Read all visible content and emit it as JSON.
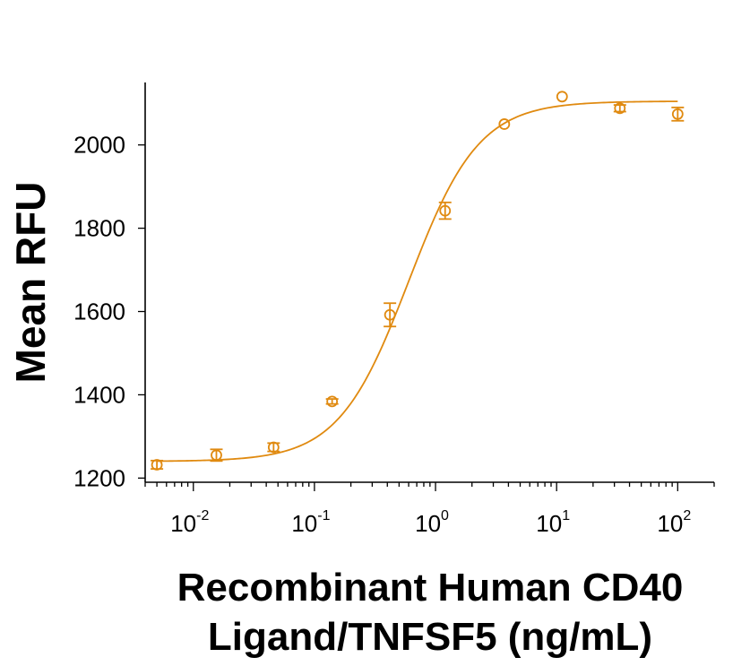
{
  "chart_data": {
    "type": "scatter",
    "title": "",
    "xscale": "log",
    "xlim": [
      0.004,
      200
    ],
    "ylim": [
      1190,
      2150
    ],
    "xlabel_lines": [
      "Recombinant Human CD40",
      "Ligand/TNFSF5 (ng/mL)"
    ],
    "ylabel": "Mean RFU",
    "yticks": [
      1200,
      1400,
      1600,
      1800,
      2000
    ],
    "xticks": [
      {
        "value": 0.01,
        "base": "10",
        "exp": "-2"
      },
      {
        "value": 0.1,
        "base": "10",
        "exp": "-1"
      },
      {
        "value": 1,
        "base": "10",
        "exp": "0"
      },
      {
        "value": 10,
        "base": "10",
        "exp": "1"
      },
      {
        "value": 100,
        "base": "10",
        "exp": "2"
      }
    ],
    "color": "#E08A10",
    "points": [
      {
        "x": 0.005,
        "y": 1232,
        "err": 10
      },
      {
        "x": 0.0155,
        "y": 1255,
        "err": 14
      },
      {
        "x": 0.046,
        "y": 1274,
        "err": 10
      },
      {
        "x": 0.14,
        "y": 1384,
        "err": 6
      },
      {
        "x": 0.42,
        "y": 1592,
        "err": 28
      },
      {
        "x": 1.2,
        "y": 1842,
        "err": 20
      },
      {
        "x": 3.7,
        "y": 2050,
        "err": 0
      },
      {
        "x": 11.1,
        "y": 2116,
        "err": 0
      },
      {
        "x": 33.3,
        "y": 2088,
        "err": 8
      },
      {
        "x": 100,
        "y": 2074,
        "err": 16
      }
    ],
    "fit": {
      "model": "4PL",
      "bottom": 1240,
      "top": 2105,
      "ec50": 0.6,
      "hill": 1.5,
      "x_range": [
        0.005,
        100
      ]
    }
  }
}
